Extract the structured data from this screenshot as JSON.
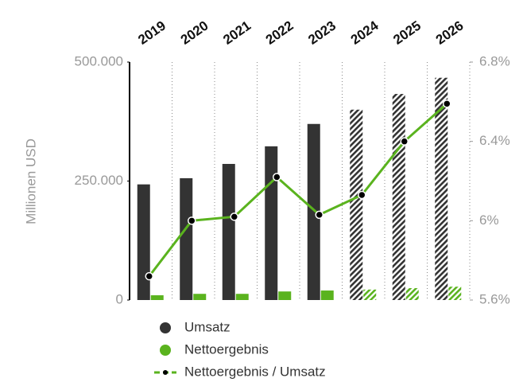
{
  "chart_data": {
    "type": "bar",
    "categories": [
      "2019",
      "2020",
      "2021",
      "2022",
      "2023",
      "2024",
      "2025",
      "2026"
    ],
    "estimate": [
      false,
      false,
      false,
      false,
      false,
      true,
      true,
      true
    ],
    "y_axis_label": "Millionen USD",
    "series": [
      {
        "name": "Umsatz",
        "color": "#333333",
        "values": [
          243000,
          256000,
          286000,
          323000,
          370000,
          400000,
          433000,
          467000
        ]
      },
      {
        "name": "Nettoergebnis",
        "color": "#5ab31e",
        "values": [
          10000,
          13000,
          13000,
          18000,
          20000,
          22000,
          25000,
          28000
        ]
      },
      {
        "name": "Nettoergebnis / Umsatz",
        "color": "#5ab31e",
        "axis": "y2",
        "type": "line",
        "values": [
          5.72,
          6.0,
          6.02,
          6.22,
          6.03,
          6.13,
          6.4,
          6.59
        ]
      }
    ],
    "ylim": [
      0,
      500000
    ],
    "yticks": [
      0,
      {
        "value": 250000,
        "label": "250.000"
      },
      {
        "value": 500000,
        "label": "500.000"
      }
    ],
    "y2lim": [
      5.6,
      6.8
    ],
    "y2ticks": [
      {
        "value": 5.6,
        "label": "5.6%"
      },
      {
        "value": 6,
        "label": "6%"
      },
      {
        "value": 6.4,
        "label": "6.4%"
      },
      {
        "value": 6.8,
        "label": "6.8%"
      }
    ],
    "grid": true
  }
}
